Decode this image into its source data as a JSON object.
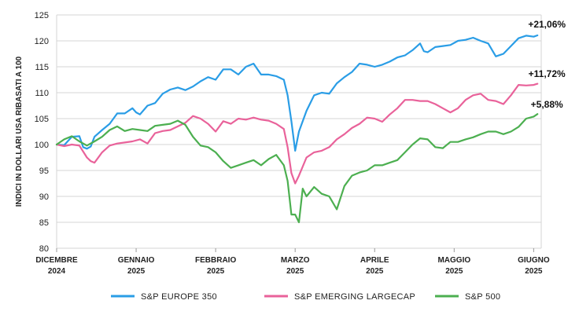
{
  "chart_data": {
    "type": "line",
    "ylabel": "INDICI IN DOLLARI USA RIBASATI A 100",
    "ylim": [
      80,
      125
    ],
    "yticks": [
      80,
      85,
      90,
      95,
      100,
      105,
      110,
      115,
      120,
      125
    ],
    "x_ticks": [
      {
        "pos": 0,
        "line1": "DICEMBRE",
        "line2": "2024"
      },
      {
        "pos": 21,
        "line1": "GENNAIO",
        "line2": "2025"
      },
      {
        "pos": 42,
        "line1": "FEBBRAIO",
        "line2": "2025"
      },
      {
        "pos": 63,
        "line1": "MARZO",
        "line2": "2025"
      },
      {
        "pos": 84,
        "line1": "APRILE",
        "line2": "2025"
      },
      {
        "pos": 105,
        "line1": "MAGGIO",
        "line2": "2025"
      },
      {
        "pos": 126,
        "line1": "GIUGNO",
        "line2": "2025"
      }
    ],
    "xlim": [
      0,
      128
    ],
    "grid": true,
    "legend_position": "bottom",
    "series": [
      {
        "name": "S&P EUROPE 350",
        "color": "#2a9de6",
        "annotation": "+21,06%",
        "points": [
          [
            0,
            100.0
          ],
          [
            2,
            99.9
          ],
          [
            4,
            101.5
          ],
          [
            6,
            101.6
          ],
          [
            7,
            99.5
          ],
          [
            8,
            99.2
          ],
          [
            9,
            99.6
          ],
          [
            10,
            101.5
          ],
          [
            12,
            102.8
          ],
          [
            14,
            104.0
          ],
          [
            16,
            106.0
          ],
          [
            18,
            106.0
          ],
          [
            20,
            107.0
          ],
          [
            21,
            106.2
          ],
          [
            22,
            105.8
          ],
          [
            24,
            107.5
          ],
          [
            26,
            108.0
          ],
          [
            28,
            109.8
          ],
          [
            30,
            110.6
          ],
          [
            32,
            111.0
          ],
          [
            34,
            110.5
          ],
          [
            36,
            111.2
          ],
          [
            38,
            112.2
          ],
          [
            40,
            113.0
          ],
          [
            42,
            112.5
          ],
          [
            44,
            114.5
          ],
          [
            46,
            114.5
          ],
          [
            48,
            113.5
          ],
          [
            50,
            115.0
          ],
          [
            52,
            115.6
          ],
          [
            54,
            113.5
          ],
          [
            56,
            113.5
          ],
          [
            58,
            113.2
          ],
          [
            60,
            112.5
          ],
          [
            61,
            109.5
          ],
          [
            62,
            104.5
          ],
          [
            63,
            98.8
          ],
          [
            64,
            102.5
          ],
          [
            66,
            106.5
          ],
          [
            68,
            109.5
          ],
          [
            70,
            110.0
          ],
          [
            72,
            109.8
          ],
          [
            74,
            111.8
          ],
          [
            76,
            113.0
          ],
          [
            78,
            114.0
          ],
          [
            80,
            115.6
          ],
          [
            82,
            115.4
          ],
          [
            84,
            115.0
          ],
          [
            86,
            115.4
          ],
          [
            88,
            116.0
          ],
          [
            90,
            116.8
          ],
          [
            92,
            117.2
          ],
          [
            94,
            118.2
          ],
          [
            96,
            119.5
          ],
          [
            97,
            118.0
          ],
          [
            98,
            117.8
          ],
          [
            100,
            118.8
          ],
          [
            102,
            119.0
          ],
          [
            104,
            119.2
          ],
          [
            106,
            120.0
          ],
          [
            108,
            120.2
          ],
          [
            110,
            120.6
          ],
          [
            112,
            120.0
          ],
          [
            114,
            119.5
          ],
          [
            116,
            117.0
          ],
          [
            118,
            117.5
          ],
          [
            120,
            119.0
          ],
          [
            122,
            120.5
          ],
          [
            124,
            121.0
          ],
          [
            126,
            120.8
          ],
          [
            127,
            121.06
          ]
        ]
      },
      {
        "name": "S&P EMERGING LARGECAP",
        "color": "#e9629a",
        "annotation": "+11,72%",
        "points": [
          [
            0,
            100.0
          ],
          [
            2,
            99.7
          ],
          [
            4,
            100.0
          ],
          [
            6,
            99.8
          ],
          [
            8,
            97.5
          ],
          [
            9,
            96.8
          ],
          [
            10,
            96.5
          ],
          [
            12,
            98.5
          ],
          [
            14,
            99.8
          ],
          [
            16,
            100.2
          ],
          [
            18,
            100.4
          ],
          [
            20,
            100.6
          ],
          [
            22,
            101.0
          ],
          [
            24,
            100.2
          ],
          [
            26,
            102.2
          ],
          [
            28,
            102.6
          ],
          [
            30,
            102.8
          ],
          [
            32,
            103.5
          ],
          [
            34,
            104.2
          ],
          [
            36,
            105.5
          ],
          [
            38,
            105.0
          ],
          [
            40,
            104.0
          ],
          [
            42,
            102.5
          ],
          [
            44,
            104.5
          ],
          [
            46,
            104.0
          ],
          [
            48,
            105.0
          ],
          [
            50,
            104.8
          ],
          [
            52,
            105.2
          ],
          [
            54,
            104.8
          ],
          [
            56,
            104.6
          ],
          [
            58,
            104.0
          ],
          [
            60,
            103.0
          ],
          [
            61,
            99.5
          ],
          [
            62,
            94.5
          ],
          [
            63,
            92.5
          ],
          [
            64,
            94.0
          ],
          [
            66,
            97.5
          ],
          [
            68,
            98.5
          ],
          [
            70,
            98.8
          ],
          [
            72,
            99.5
          ],
          [
            74,
            101.0
          ],
          [
            76,
            102.0
          ],
          [
            78,
            103.2
          ],
          [
            80,
            104.0
          ],
          [
            82,
            105.2
          ],
          [
            84,
            105.0
          ],
          [
            86,
            104.4
          ],
          [
            88,
            105.8
          ],
          [
            90,
            107.0
          ],
          [
            92,
            108.6
          ],
          [
            94,
            108.6
          ],
          [
            96,
            108.4
          ],
          [
            98,
            108.4
          ],
          [
            100,
            107.8
          ],
          [
            102,
            107.0
          ],
          [
            104,
            106.2
          ],
          [
            106,
            107.0
          ],
          [
            108,
            108.6
          ],
          [
            110,
            109.5
          ],
          [
            112,
            109.8
          ],
          [
            114,
            108.6
          ],
          [
            116,
            108.4
          ],
          [
            118,
            107.8
          ],
          [
            120,
            109.5
          ],
          [
            122,
            111.5
          ],
          [
            124,
            111.4
          ],
          [
            126,
            111.5
          ],
          [
            127,
            111.72
          ]
        ]
      },
      {
        "name": "S&P 500",
        "color": "#4caf50",
        "annotation": "+5,88%",
        "points": [
          [
            0,
            100.0
          ],
          [
            2,
            101.0
          ],
          [
            4,
            101.6
          ],
          [
            6,
            100.6
          ],
          [
            8,
            99.8
          ],
          [
            10,
            100.6
          ],
          [
            12,
            101.5
          ],
          [
            14,
            102.8
          ],
          [
            16,
            103.5
          ],
          [
            18,
            102.6
          ],
          [
            20,
            103.0
          ],
          [
            22,
            102.8
          ],
          [
            24,
            102.6
          ],
          [
            26,
            103.6
          ],
          [
            28,
            103.8
          ],
          [
            30,
            104.0
          ],
          [
            32,
            104.6
          ],
          [
            34,
            103.8
          ],
          [
            36,
            101.5
          ],
          [
            38,
            99.8
          ],
          [
            40,
            99.5
          ],
          [
            42,
            98.5
          ],
          [
            44,
            96.8
          ],
          [
            46,
            95.5
          ],
          [
            48,
            96.0
          ],
          [
            50,
            96.5
          ],
          [
            52,
            97.0
          ],
          [
            54,
            96.0
          ],
          [
            56,
            97.2
          ],
          [
            58,
            98.0
          ],
          [
            60,
            96.0
          ],
          [
            61,
            93.0
          ],
          [
            62,
            86.5
          ],
          [
            63,
            86.5
          ],
          [
            64,
            85.0
          ],
          [
            65,
            91.5
          ],
          [
            66,
            90.0
          ],
          [
            68,
            91.8
          ],
          [
            70,
            90.5
          ],
          [
            72,
            90.0
          ],
          [
            74,
            87.5
          ],
          [
            76,
            92.0
          ],
          [
            78,
            94.0
          ],
          [
            80,
            94.6
          ],
          [
            82,
            95.0
          ],
          [
            84,
            96.0
          ],
          [
            86,
            96.0
          ],
          [
            88,
            96.5
          ],
          [
            90,
            97.0
          ],
          [
            92,
            98.5
          ],
          [
            94,
            100.0
          ],
          [
            96,
            101.2
          ],
          [
            98,
            101.0
          ],
          [
            100,
            99.5
          ],
          [
            102,
            99.3
          ],
          [
            104,
            100.5
          ],
          [
            106,
            100.5
          ],
          [
            108,
            101.0
          ],
          [
            110,
            101.4
          ],
          [
            112,
            102.0
          ],
          [
            114,
            102.5
          ],
          [
            116,
            102.5
          ],
          [
            118,
            102.0
          ],
          [
            120,
            102.5
          ],
          [
            122,
            103.4
          ],
          [
            124,
            105.0
          ],
          [
            126,
            105.4
          ],
          [
            127,
            105.88
          ]
        ]
      }
    ]
  }
}
